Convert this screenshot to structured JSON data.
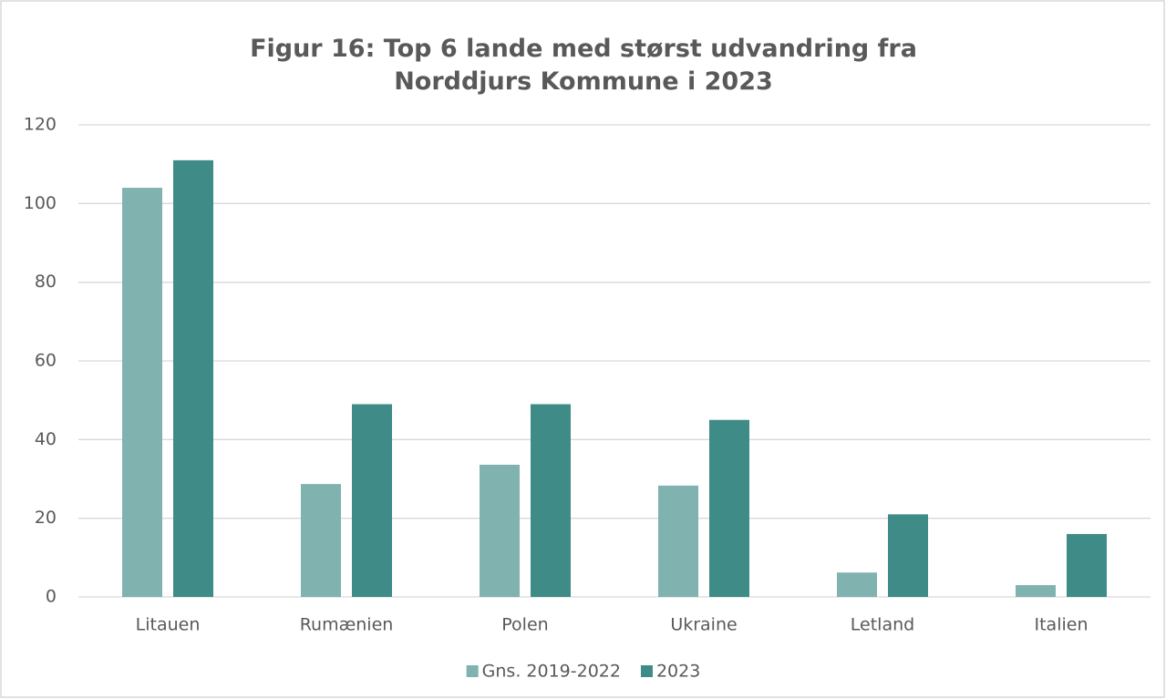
{
  "chart_data": {
    "type": "bar",
    "title": "Figur 16: Top 6 lande med størst udvandring fra Norddjurs Kommune i 2023",
    "categories": [
      "Litauen",
      "Rumænien",
      "Polen",
      "Ukraine",
      "Letland",
      "Italien"
    ],
    "series": [
      {
        "name": "Gns. 2019-2022",
        "color": "#80b2b0",
        "values": [
          104,
          28.7,
          33.6,
          28.3,
          6.2,
          3
        ]
      },
      {
        "name": "2023",
        "color": "#3e8b88",
        "values": [
          111,
          49,
          49,
          45,
          21,
          16
        ]
      }
    ],
    "ylim": [
      0,
      120
    ],
    "yticks": [
      0,
      20,
      40,
      60,
      80,
      100,
      120
    ],
    "grid": true,
    "legend": "bottom"
  }
}
